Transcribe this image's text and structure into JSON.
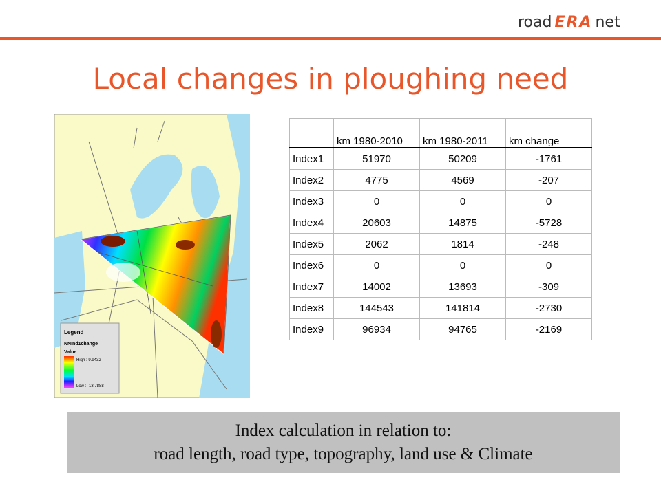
{
  "logo": {
    "left": "road",
    "middle": "ERA",
    "right": "net"
  },
  "title": "Local changes in ploughing need",
  "map": {
    "legend": {
      "title": "Legend",
      "layer": "NNInd1change",
      "field": "Value",
      "high": "High : 9.9432",
      "low": "Low : -13.7888"
    }
  },
  "table": {
    "header": [
      "km 1980-2010",
      "km 1980-2011",
      "km change"
    ],
    "rows": [
      [
        "Index1",
        51970,
        50209,
        -1761
      ],
      [
        "Index2",
        4775,
        4569,
        -207
      ],
      [
        "Index3",
        0,
        0,
        0
      ],
      [
        "Index4",
        20603,
        14875,
        -5728
      ],
      [
        "Index5",
        2062,
        1814,
        -248
      ],
      [
        "Index6",
        0,
        0,
        0
      ],
      [
        "Index7",
        14002,
        13693,
        -309
      ],
      [
        "Index8",
        144543,
        141814,
        -2730
      ],
      [
        "Index9",
        96934,
        94765,
        -2169
      ]
    ]
  },
  "caption": {
    "line1": "Index calculation in relation to:",
    "line2": "road length, road type, topography, land use & Climate"
  }
}
